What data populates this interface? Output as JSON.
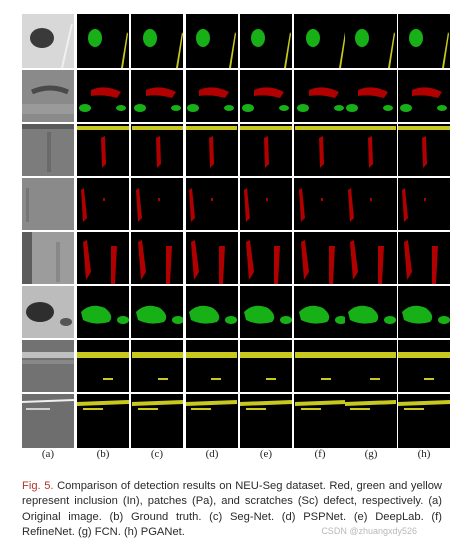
{
  "column_labels": [
    "(a)",
    "(b)",
    "(c)",
    "(d)",
    "(e)",
    "(f)",
    "(g)",
    "(h)"
  ],
  "legend_colors": {
    "inclusion": "#b00000",
    "patches": "#17b017",
    "scratches": "#c8c81e"
  },
  "caption": {
    "fig_label": "Fig. 5.",
    "text": "Comparison of detection results on NEU-Seg dataset. Red, green and yellow represent inclusion (In), patches (Pa), and scratches (Sc) defect, respectively. (a) Original image. (b) Ground truth. (c) Seg-Net. (d) PSPNet. (e) DeepLab. (f) RefineNet. (g) FCN. (h) PGANet."
  },
  "watermark": "CSDN @zhuangxdy526"
}
